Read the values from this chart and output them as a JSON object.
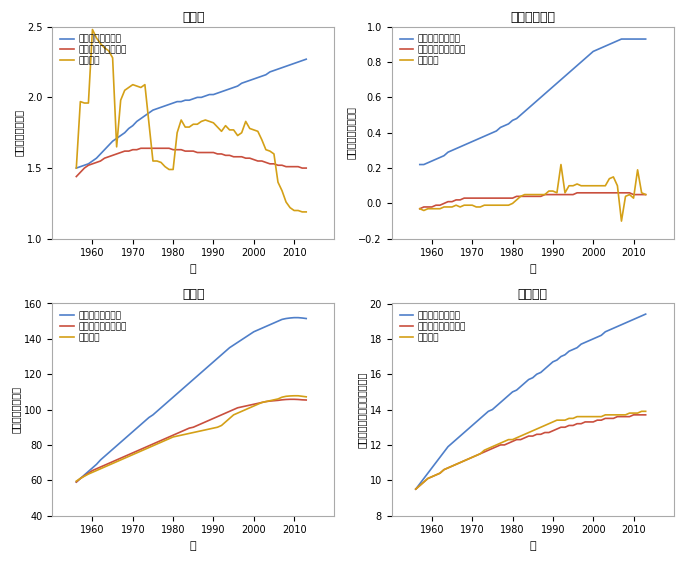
{
  "titles": [
    "出生数",
    "純人口流入数",
    "総人口",
    "市場規模"
  ],
  "ylabels": [
    "出生数（百万人）",
    "純流入数（百万人）",
    "総人口（百万人）",
    "市場規模（十億円・対数値）"
  ],
  "xlabel": "年",
  "legend_labels": [
    "反実仮想分析の値",
    "モデルによる予測値",
    "実際の値"
  ],
  "colors": {
    "counterfactual": "#4f7fc9",
    "model": "#c94f3e",
    "actual": "#d4a017"
  },
  "birth_years": [
    1956,
    1957,
    1958,
    1959,
    1960,
    1961,
    1962,
    1963,
    1964,
    1965,
    1966,
    1967,
    1968,
    1969,
    1970,
    1971,
    1972,
    1973,
    1974,
    1975,
    1976,
    1977,
    1978,
    1979,
    1980,
    1981,
    1982,
    1983,
    1984,
    1985,
    1986,
    1987,
    1988,
    1989,
    1990,
    1991,
    1992,
    1993,
    1994,
    1995,
    1996,
    1997,
    1998,
    1999,
    2000,
    2001,
    2002,
    2003,
    2004,
    2005,
    2006,
    2007,
    2008,
    2009,
    2010,
    2011,
    2012,
    2013
  ],
  "birth_counter": [
    1.5,
    1.51,
    1.52,
    1.53,
    1.55,
    1.57,
    1.6,
    1.63,
    1.66,
    1.69,
    1.71,
    1.73,
    1.75,
    1.78,
    1.8,
    1.83,
    1.85,
    1.87,
    1.89,
    1.91,
    1.92,
    1.93,
    1.94,
    1.95,
    1.96,
    1.97,
    1.97,
    1.98,
    1.98,
    1.99,
    2.0,
    2.0,
    2.01,
    2.02,
    2.02,
    2.03,
    2.04,
    2.05,
    2.06,
    2.07,
    2.08,
    2.1,
    2.11,
    2.12,
    2.13,
    2.14,
    2.15,
    2.16,
    2.18,
    2.19,
    2.2,
    2.21,
    2.22,
    2.23,
    2.24,
    2.25,
    2.26,
    2.27
  ],
  "birth_model": [
    1.44,
    1.47,
    1.5,
    1.52,
    1.53,
    1.54,
    1.55,
    1.57,
    1.58,
    1.59,
    1.6,
    1.61,
    1.62,
    1.62,
    1.63,
    1.63,
    1.64,
    1.64,
    1.64,
    1.64,
    1.64,
    1.64,
    1.64,
    1.64,
    1.63,
    1.63,
    1.63,
    1.62,
    1.62,
    1.62,
    1.61,
    1.61,
    1.61,
    1.61,
    1.61,
    1.6,
    1.6,
    1.59,
    1.59,
    1.58,
    1.58,
    1.58,
    1.57,
    1.57,
    1.56,
    1.55,
    1.55,
    1.54,
    1.53,
    1.53,
    1.52,
    1.52,
    1.51,
    1.51,
    1.51,
    1.51,
    1.5,
    1.5
  ],
  "birth_actual": [
    1.5,
    1.97,
    1.96,
    1.96,
    2.48,
    2.42,
    2.38,
    2.35,
    2.33,
    2.28,
    1.65,
    1.98,
    2.05,
    2.07,
    2.09,
    2.08,
    2.07,
    2.09,
    1.82,
    1.55,
    1.55,
    1.54,
    1.51,
    1.49,
    1.49,
    1.75,
    1.84,
    1.79,
    1.79,
    1.81,
    1.81,
    1.83,
    1.84,
    1.83,
    1.82,
    1.79,
    1.76,
    1.8,
    1.77,
    1.77,
    1.73,
    1.75,
    1.83,
    1.78,
    1.77,
    1.76,
    1.7,
    1.63,
    1.62,
    1.6,
    1.4,
    1.34,
    1.26,
    1.22,
    1.2,
    1.2,
    1.19,
    1.19
  ],
  "net_years": [
    1957,
    1958,
    1959,
    1960,
    1961,
    1962,
    1963,
    1964,
    1965,
    1966,
    1967,
    1968,
    1969,
    1970,
    1971,
    1972,
    1973,
    1974,
    1975,
    1976,
    1977,
    1978,
    1979,
    1980,
    1981,
    1982,
    1983,
    1984,
    1985,
    1986,
    1987,
    1988,
    1989,
    1990,
    1991,
    1992,
    1993,
    1994,
    1995,
    1996,
    1997,
    1998,
    1999,
    2000,
    2001,
    2002,
    2003,
    2004,
    2005,
    2006,
    2007,
    2008,
    2009,
    2010,
    2011,
    2012,
    2013
  ],
  "net_counter": [
    0.22,
    0.22,
    0.23,
    0.24,
    0.25,
    0.26,
    0.27,
    0.29,
    0.3,
    0.31,
    0.32,
    0.33,
    0.34,
    0.35,
    0.36,
    0.37,
    0.38,
    0.39,
    0.4,
    0.41,
    0.43,
    0.44,
    0.45,
    0.47,
    0.48,
    0.5,
    0.52,
    0.54,
    0.56,
    0.58,
    0.6,
    0.62,
    0.64,
    0.66,
    0.68,
    0.7,
    0.72,
    0.74,
    0.76,
    0.78,
    0.8,
    0.82,
    0.84,
    0.86,
    0.87,
    0.88,
    0.89,
    0.9,
    0.91,
    0.92,
    0.93,
    0.93,
    0.93,
    0.93,
    0.93,
    0.93,
    0.93
  ],
  "net_model": [
    -0.03,
    -0.02,
    -0.02,
    -0.02,
    -0.01,
    -0.01,
    0.0,
    0.01,
    0.01,
    0.02,
    0.02,
    0.03,
    0.03,
    0.03,
    0.03,
    0.03,
    0.03,
    0.03,
    0.03,
    0.03,
    0.03,
    0.03,
    0.03,
    0.03,
    0.04,
    0.04,
    0.04,
    0.04,
    0.04,
    0.04,
    0.04,
    0.05,
    0.05,
    0.05,
    0.05,
    0.05,
    0.05,
    0.05,
    0.05,
    0.06,
    0.06,
    0.06,
    0.06,
    0.06,
    0.06,
    0.06,
    0.06,
    0.06,
    0.06,
    0.06,
    0.06,
    0.06,
    0.06,
    0.05,
    0.05,
    0.05,
    0.05
  ],
  "net_actual": [
    -0.03,
    -0.04,
    -0.03,
    -0.03,
    -0.03,
    -0.03,
    -0.02,
    -0.02,
    -0.02,
    -0.01,
    -0.02,
    -0.01,
    -0.01,
    -0.01,
    -0.02,
    -0.02,
    -0.01,
    -0.01,
    -0.01,
    -0.01,
    -0.01,
    -0.01,
    -0.01,
    0.0,
    0.02,
    0.04,
    0.05,
    0.05,
    0.05,
    0.05,
    0.05,
    0.05,
    0.07,
    0.07,
    0.06,
    0.22,
    0.06,
    0.1,
    0.1,
    0.11,
    0.1,
    0.1,
    0.1,
    0.1,
    0.1,
    0.1,
    0.1,
    0.14,
    0.15,
    0.1,
    -0.1,
    0.04,
    0.05,
    0.03,
    0.19,
    0.06,
    0.05
  ],
  "pop_years": [
    1956,
    1957,
    1958,
    1959,
    1960,
    1961,
    1962,
    1963,
    1964,
    1965,
    1966,
    1967,
    1968,
    1969,
    1970,
    1971,
    1972,
    1973,
    1974,
    1975,
    1976,
    1977,
    1978,
    1979,
    1980,
    1981,
    1982,
    1983,
    1984,
    1985,
    1986,
    1987,
    1988,
    1989,
    1990,
    1991,
    1992,
    1993,
    1994,
    1995,
    1996,
    1997,
    1998,
    1999,
    2000,
    2001,
    2002,
    2003,
    2004,
    2005,
    2006,
    2007,
    2008,
    2009,
    2010,
    2011,
    2012,
    2013
  ],
  "pop_counter": [
    59.0,
    61.0,
    63.0,
    65.0,
    67.0,
    69.0,
    71.5,
    73.5,
    75.5,
    77.5,
    79.5,
    81.5,
    83.5,
    85.5,
    87.5,
    89.5,
    91.5,
    93.5,
    95.5,
    97.0,
    99.0,
    101.0,
    103.0,
    105.0,
    107.0,
    109.0,
    111.0,
    113.0,
    115.0,
    117.0,
    119.0,
    121.0,
    123.0,
    125.0,
    127.0,
    129.0,
    131.0,
    133.0,
    135.0,
    136.5,
    138.0,
    139.5,
    141.0,
    142.5,
    144.0,
    145.0,
    146.0,
    147.0,
    148.0,
    149.0,
    150.0,
    151.0,
    151.5,
    151.8,
    152.0,
    152.0,
    151.8,
    151.5
  ],
  "pop_model": [
    59.0,
    61.0,
    62.5,
    64.0,
    65.5,
    66.5,
    67.5,
    68.5,
    69.5,
    70.5,
    71.5,
    72.5,
    73.5,
    74.5,
    75.5,
    76.5,
    77.5,
    78.5,
    79.5,
    80.5,
    81.5,
    82.5,
    83.5,
    84.5,
    85.5,
    86.5,
    87.5,
    88.5,
    89.5,
    90.0,
    91.0,
    92.0,
    93.0,
    94.0,
    95.0,
    96.0,
    97.0,
    98.0,
    99.0,
    100.0,
    101.0,
    101.5,
    102.0,
    102.5,
    103.0,
    103.5,
    104.0,
    104.5,
    104.8,
    105.0,
    105.2,
    105.5,
    105.7,
    105.8,
    105.8,
    105.7,
    105.5,
    105.4
  ],
  "pop_actual": [
    59.5,
    61.0,
    62.3,
    63.5,
    64.5,
    65.5,
    66.5,
    67.5,
    68.5,
    69.5,
    70.5,
    71.5,
    72.5,
    73.5,
    74.5,
    75.5,
    76.5,
    77.5,
    78.5,
    79.5,
    80.5,
    81.5,
    82.5,
    83.5,
    84.5,
    85.0,
    85.5,
    86.0,
    86.5,
    87.0,
    87.5,
    88.0,
    88.5,
    89.0,
    89.5,
    90.0,
    91.0,
    93.0,
    95.0,
    97.0,
    98.0,
    99.0,
    100.0,
    101.0,
    102.0,
    103.0,
    104.0,
    104.5,
    105.0,
    105.5,
    106.0,
    107.0,
    107.5,
    107.7,
    107.8,
    107.8,
    107.5,
    107.2
  ],
  "mkt_years": [
    1956,
    1957,
    1958,
    1959,
    1960,
    1961,
    1962,
    1963,
    1964,
    1965,
    1966,
    1967,
    1968,
    1969,
    1970,
    1971,
    1972,
    1973,
    1974,
    1975,
    1976,
    1977,
    1978,
    1979,
    1980,
    1981,
    1982,
    1983,
    1984,
    1985,
    1986,
    1987,
    1988,
    1989,
    1990,
    1991,
    1992,
    1993,
    1994,
    1995,
    1996,
    1997,
    1998,
    1999,
    2000,
    2001,
    2002,
    2003,
    2004,
    2005,
    2006,
    2007,
    2008,
    2009,
    2010,
    2011,
    2012,
    2013
  ],
  "mkt_counter": [
    9.5,
    9.8,
    10.1,
    10.4,
    10.7,
    11.0,
    11.3,
    11.6,
    11.9,
    12.1,
    12.3,
    12.5,
    12.7,
    12.9,
    13.1,
    13.3,
    13.5,
    13.7,
    13.9,
    14.0,
    14.2,
    14.4,
    14.6,
    14.8,
    15.0,
    15.1,
    15.3,
    15.5,
    15.7,
    15.8,
    16.0,
    16.1,
    16.3,
    16.5,
    16.7,
    16.8,
    17.0,
    17.1,
    17.3,
    17.4,
    17.5,
    17.7,
    17.8,
    17.9,
    18.0,
    18.1,
    18.2,
    18.4,
    18.5,
    18.6,
    18.7,
    18.8,
    18.9,
    19.0,
    19.1,
    19.2,
    19.3,
    19.4
  ],
  "mkt_model": [
    9.5,
    9.7,
    9.9,
    10.1,
    10.2,
    10.3,
    10.4,
    10.6,
    10.7,
    10.8,
    10.9,
    11.0,
    11.1,
    11.2,
    11.3,
    11.4,
    11.5,
    11.6,
    11.7,
    11.8,
    11.9,
    12.0,
    12.0,
    12.1,
    12.2,
    12.3,
    12.3,
    12.4,
    12.5,
    12.5,
    12.6,
    12.6,
    12.7,
    12.7,
    12.8,
    12.9,
    13.0,
    13.0,
    13.1,
    13.1,
    13.2,
    13.2,
    13.3,
    13.3,
    13.3,
    13.4,
    13.4,
    13.5,
    13.5,
    13.5,
    13.6,
    13.6,
    13.6,
    13.6,
    13.7,
    13.7,
    13.7,
    13.7
  ],
  "mkt_actual": [
    9.5,
    9.7,
    9.9,
    10.1,
    10.2,
    10.3,
    10.4,
    10.6,
    10.7,
    10.8,
    10.9,
    11.0,
    11.1,
    11.2,
    11.3,
    11.4,
    11.5,
    11.7,
    11.8,
    11.9,
    12.0,
    12.1,
    12.2,
    12.3,
    12.3,
    12.4,
    12.5,
    12.6,
    12.7,
    12.8,
    12.9,
    13.0,
    13.1,
    13.2,
    13.3,
    13.4,
    13.4,
    13.4,
    13.5,
    13.5,
    13.6,
    13.6,
    13.6,
    13.6,
    13.6,
    13.6,
    13.6,
    13.7,
    13.7,
    13.7,
    13.7,
    13.7,
    13.7,
    13.8,
    13.8,
    13.8,
    13.9,
    13.9
  ],
  "birth_ylim": [
    1.0,
    2.5
  ],
  "net_ylim": [
    -0.2,
    1.0
  ],
  "pop_ylim": [
    40,
    160
  ],
  "mkt_ylim": [
    8,
    20
  ],
  "xlim": [
    1950,
    2020
  ]
}
